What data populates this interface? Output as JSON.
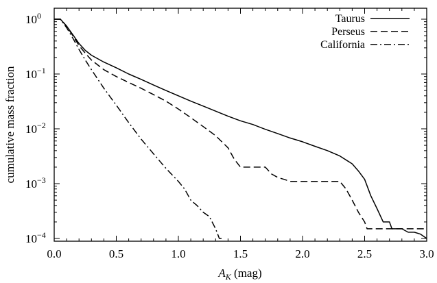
{
  "chart_data": {
    "type": "line",
    "title": "",
    "xlabel": "A_K (mag)",
    "xlabel_parts": {
      "main": "A",
      "sub": "K",
      "rest": " (mag)"
    },
    "ylabel": "cumulative mass fraction",
    "xlim": [
      0.0,
      3.0
    ],
    "ylim": [
      0.0001,
      1.0
    ],
    "yscale": "log",
    "grid": false,
    "legend_position": "top-right",
    "xticks": [
      {
        "value": 0.0,
        "label": "0.0"
      },
      {
        "value": 0.5,
        "label": "0.5"
      },
      {
        "value": 1.0,
        "label": "1.0"
      },
      {
        "value": 1.5,
        "label": "1.5"
      },
      {
        "value": 2.0,
        "label": "2.0"
      },
      {
        "value": 2.5,
        "label": "2.5"
      },
      {
        "value": 3.0,
        "label": "3.0"
      }
    ],
    "yticks": [
      {
        "value": 1,
        "base": "10",
        "exp": "0"
      },
      {
        "value": 0.1,
        "base": "10",
        "exp": "−1"
      },
      {
        "value": 0.01,
        "base": "10",
        "exp": "−2"
      },
      {
        "value": 0.001,
        "base": "10",
        "exp": "−3"
      },
      {
        "value": 0.0001,
        "base": "10",
        "exp": "−4"
      }
    ],
    "series": [
      {
        "name": "Taurus",
        "style": "solid",
        "x": [
          0.05,
          0.1,
          0.15,
          0.2,
          0.25,
          0.3,
          0.4,
          0.5,
          0.6,
          0.7,
          0.8,
          0.9,
          1.0,
          1.1,
          1.2,
          1.3,
          1.4,
          1.5,
          1.6,
          1.7,
          1.8,
          1.9,
          2.0,
          2.1,
          2.2,
          2.3,
          2.4,
          2.45,
          2.5,
          2.55,
          2.6,
          2.65,
          2.7,
          2.72,
          2.8,
          2.85,
          2.9,
          2.95,
          3.0
        ],
        "y": [
          1.0,
          0.75,
          0.52,
          0.36,
          0.27,
          0.22,
          0.165,
          0.13,
          0.1,
          0.08,
          0.063,
          0.05,
          0.04,
          0.032,
          0.026,
          0.021,
          0.017,
          0.014,
          0.012,
          0.0098,
          0.0082,
          0.0068,
          0.0058,
          0.0048,
          0.004,
          0.0032,
          0.0023,
          0.0017,
          0.0012,
          0.0006,
          0.00035,
          0.0002,
          0.0002,
          0.00015,
          0.00015,
          0.00013,
          0.00013,
          0.00012,
          0.0001
        ]
      },
      {
        "name": "Perseus",
        "style": "dashed",
        "x": [
          0.05,
          0.1,
          0.15,
          0.2,
          0.25,
          0.3,
          0.4,
          0.5,
          0.6,
          0.7,
          0.8,
          0.9,
          1.0,
          1.1,
          1.2,
          1.3,
          1.4,
          1.45,
          1.5,
          1.6,
          1.7,
          1.75,
          1.8,
          1.85,
          1.9,
          2.0,
          2.1,
          2.2,
          2.3,
          2.35,
          2.4,
          2.45,
          2.5,
          2.52,
          2.7,
          2.8,
          2.9,
          3.0
        ],
        "y": [
          1.0,
          0.75,
          0.5,
          0.33,
          0.24,
          0.18,
          0.12,
          0.09,
          0.07,
          0.055,
          0.042,
          0.032,
          0.023,
          0.016,
          0.011,
          0.0075,
          0.0045,
          0.0028,
          0.002,
          0.002,
          0.002,
          0.0015,
          0.0013,
          0.0012,
          0.0011,
          0.0011,
          0.0011,
          0.0011,
          0.0011,
          0.0008,
          0.0005,
          0.0003,
          0.0002,
          0.00015,
          0.00015,
          0.00015,
          0.00015,
          0.00015
        ]
      },
      {
        "name": "California",
        "style": "dashdot",
        "x": [
          0.05,
          0.1,
          0.15,
          0.2,
          0.25,
          0.3,
          0.4,
          0.5,
          0.6,
          0.7,
          0.8,
          0.9,
          1.0,
          1.05,
          1.1,
          1.15,
          1.2,
          1.25,
          1.3,
          1.33,
          1.35
        ],
        "y": [
          1.0,
          0.7,
          0.45,
          0.28,
          0.18,
          0.12,
          0.055,
          0.027,
          0.013,
          0.0065,
          0.0035,
          0.0019,
          0.0011,
          0.0008,
          0.0005,
          0.0004,
          0.0003,
          0.00025,
          0.00015,
          0.0001,
          0.0001
        ]
      }
    ]
  }
}
